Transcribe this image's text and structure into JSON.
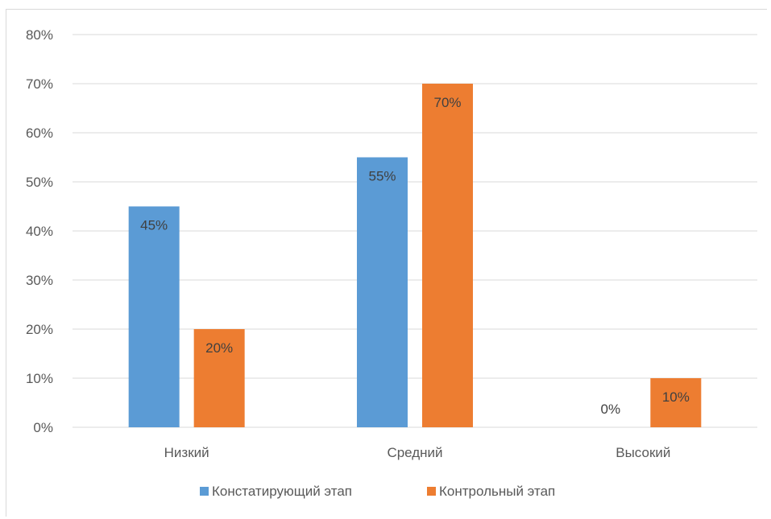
{
  "chart_data": {
    "type": "bar",
    "title": "",
    "xlabel": "",
    "ylabel": "",
    "categories": [
      "Низкий",
      "Средний",
      "Высокий"
    ],
    "series": [
      {
        "name": "Констатирующий этап",
        "values": [
          45,
          55,
          0
        ],
        "color": "#5b9bd5"
      },
      {
        "name": "Контрольный этап",
        "values": [
          20,
          70,
          10
        ],
        "color": "#ed7d31"
      }
    ],
    "ylim": [
      0,
      80
    ],
    "yticks": [
      "0%",
      "10%",
      "20%",
      "30%",
      "40%",
      "50%",
      "60%",
      "70%",
      "80%"
    ],
    "data_labels": [
      [
        "45%",
        "55%",
        "0%"
      ],
      [
        "20%",
        "70%",
        "10%"
      ]
    ],
    "grid": true,
    "legend_position": "bottom"
  }
}
